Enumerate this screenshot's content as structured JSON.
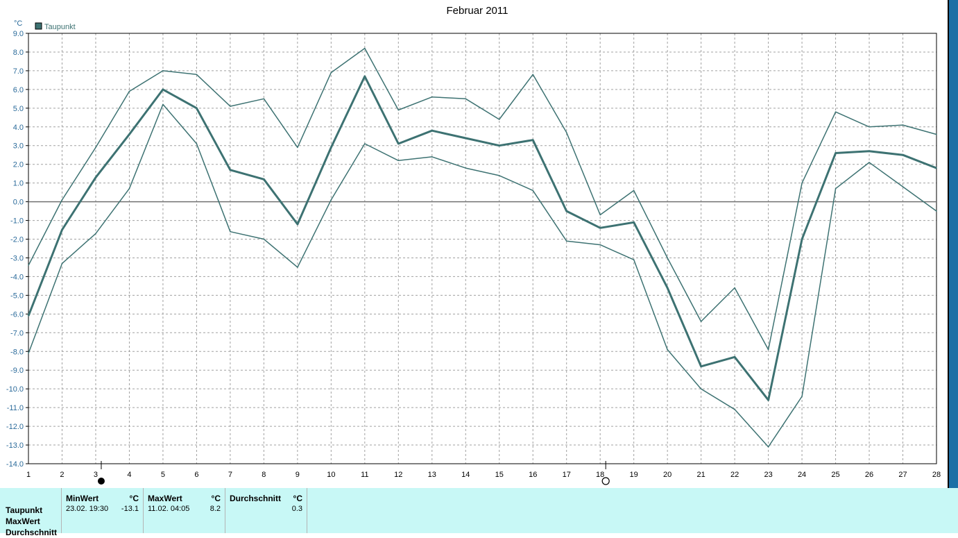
{
  "chart_data": {
    "type": "line",
    "title": "Februar 2011",
    "ylabel": "°C",
    "legend": {
      "label": "Taupunkt",
      "color": "#3d7272",
      "placement": "top-left"
    },
    "ylim": [
      -14,
      9
    ],
    "yticks": [
      "9.0",
      "8.0",
      "7.0",
      "6.0",
      "5.0",
      "4.0",
      "3.0",
      "2.0",
      "1.0",
      "0.0",
      "-1.0",
      "-2.0",
      "-3.0",
      "-4.0",
      "-5.0",
      "-6.0",
      "-7.0",
      "-8.0",
      "-9.0",
      "-10.0",
      "-11.0",
      "-12.0",
      "-13.0",
      "-14.0"
    ],
    "x": [
      1,
      2,
      3,
      4,
      5,
      6,
      7,
      8,
      9,
      10,
      11,
      12,
      13,
      14,
      15,
      16,
      17,
      18,
      19,
      20,
      21,
      22,
      23,
      24,
      25,
      26,
      27,
      28
    ],
    "grid": true,
    "moon_phases": [
      {
        "day": 3,
        "phase": "new-moon"
      },
      {
        "day": 18,
        "phase": "full-moon"
      }
    ],
    "series": [
      {
        "name": "",
        "role": "max",
        "width": 1.5,
        "values": [
          -3.4,
          0.1,
          2.9,
          5.9,
          7.0,
          6.8,
          5.1,
          5.5,
          2.9,
          6.9,
          8.2,
          4.9,
          5.6,
          5.5,
          4.4,
          6.8,
          3.7,
          -0.7,
          0.6,
          -3.0,
          -6.4,
          -4.6,
          -7.9,
          1.0,
          4.8,
          4.0,
          4.1,
          3.6
        ]
      },
      {
        "name": "Taupunkt",
        "role": "avg",
        "width": 3,
        "values": [
          -6.1,
          -1.5,
          1.3,
          3.6,
          6.0,
          5.0,
          1.7,
          1.2,
          -1.2,
          2.9,
          6.7,
          3.1,
          3.8,
          3.4,
          3.0,
          3.3,
          -0.5,
          -1.4,
          -1.1,
          -4.6,
          -8.8,
          -8.3,
          -10.6,
          -2.0,
          2.6,
          2.7,
          2.5,
          1.8
        ]
      },
      {
        "name": "",
        "role": "min",
        "width": 1.5,
        "values": [
          -8.1,
          -3.3,
          -1.7,
          0.7,
          5.2,
          3.1,
          -1.6,
          -2.0,
          -3.5,
          0.1,
          3.1,
          2.2,
          2.4,
          1.8,
          1.4,
          0.6,
          -2.1,
          -2.3,
          -3.1,
          -7.9,
          -10.0,
          -11.1,
          -13.1,
          -10.4,
          0.7,
          2.1,
          0.8,
          -0.5
        ]
      }
    ]
  },
  "summary": {
    "rows": [
      "Taupunkt",
      "MaxWert",
      "Durchschnitt"
    ],
    "min": {
      "header": "MinWert",
      "unit": "°C",
      "time": "23.02.  19:30",
      "value": "-13.1"
    },
    "max": {
      "header": "MaxWert",
      "unit": "°C",
      "time": "11.02.  04:05",
      "value": "8.2"
    },
    "avg": {
      "header": "Durchschnitt",
      "unit": "°C",
      "value": "0.3"
    }
  }
}
